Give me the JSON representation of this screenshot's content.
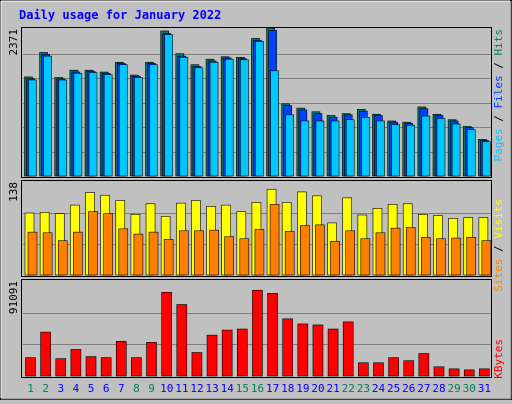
{
  "title": "Daily usage for January 2022",
  "colors": {
    "hits": "#00805c",
    "files": "#0040ff",
    "pages": "#00c8ff",
    "visits": "#ffff00",
    "sites": "#ff8000",
    "kbytes": "#ff0000",
    "weekend": "#00805c",
    "weekday": "#0000ff",
    "title": "#0000ff"
  },
  "chart_data": [
    {
      "type": "bar",
      "series": [
        {
          "name": "Hits",
          "values": [
            1620,
            2020,
            1610,
            1730,
            1730,
            1700,
            1860,
            1650,
            1860,
            2371,
            2000,
            1820,
            1910,
            1950,
            1940,
            2250,
            2420,
            1180,
            1110,
            1050,
            990,
            1020,
            1090,
            1010,
            900,
            880,
            1130,
            1010,
            920,
            810,
            600
          ]
        },
        {
          "name": "Files",
          "values": [
            1590,
            1990,
            1590,
            1700,
            1710,
            1680,
            1840,
            1630,
            1840,
            2330,
            1960,
            1790,
            1880,
            1930,
            1920,
            2220,
            2380,
            1150,
            1080,
            1020,
            960,
            1000,
            1060,
            990,
            880,
            860,
            1100,
            990,
            900,
            790,
            580
          ]
        },
        {
          "name": "Pages",
          "values": [
            1570,
            1960,
            1570,
            1680,
            1690,
            1660,
            1820,
            1610,
            1820,
            2310,
            1940,
            1770,
            1860,
            1910,
            1900,
            2200,
            1720,
            1000,
            900,
            900,
            900,
            920,
            960,
            900,
            840,
            830,
            980,
            940,
            850,
            760,
            560
          ]
        }
      ],
      "ylabel_max": "2371",
      "legend": [
        "Pages",
        "Files",
        "Hits"
      ]
    },
    {
      "type": "bar",
      "series": [
        {
          "name": "Visits",
          "values": [
            94,
            95,
            93,
            106,
            125,
            121,
            113,
            92,
            108,
            89,
            109,
            113,
            104,
            106,
            96,
            110,
            130,
            110,
            126,
            120,
            79,
            117,
            91,
            101,
            107,
            108,
            92,
            90,
            86,
            87,
            87
          ]
        },
        {
          "name": "Sites",
          "values": [
            65,
            64,
            52,
            65,
            96,
            93,
            70,
            62,
            65,
            54,
            67,
            67,
            68,
            58,
            55,
            69,
            107,
            66,
            75,
            76,
            51,
            67,
            55,
            64,
            71,
            72,
            57,
            55,
            56,
            57,
            52
          ]
        }
      ],
      "ylabel_max": "138",
      "legend": [
        "Sites",
        "Visits"
      ]
    },
    {
      "type": "bar",
      "series": [
        {
          "name": "KBytes",
          "values": [
            18000,
            43000,
            17000,
            26000,
            19000,
            18000,
            34000,
            18000,
            33000,
            82000,
            70000,
            23000,
            40000,
            45000,
            46000,
            84000,
            81000,
            56000,
            51000,
            50000,
            46000,
            53000,
            13000,
            13000,
            18000,
            15000,
            22000,
            9000,
            7000,
            6000,
            7000
          ]
        }
      ],
      "ylabel_max": "91091",
      "legend": [
        "KBytes"
      ]
    }
  ],
  "days": [
    {
      "label": "1",
      "weekend": true
    },
    {
      "label": "2",
      "weekend": true
    },
    {
      "label": "3",
      "weekend": false
    },
    {
      "label": "4",
      "weekend": false
    },
    {
      "label": "5",
      "weekend": false
    },
    {
      "label": "6",
      "weekend": false
    },
    {
      "label": "7",
      "weekend": false
    },
    {
      "label": "8",
      "weekend": true
    },
    {
      "label": "9",
      "weekend": true
    },
    {
      "label": "10",
      "weekend": false
    },
    {
      "label": "11",
      "weekend": false
    },
    {
      "label": "12",
      "weekend": false
    },
    {
      "label": "13",
      "weekend": false
    },
    {
      "label": "14",
      "weekend": false
    },
    {
      "label": "15",
      "weekend": true
    },
    {
      "label": "16",
      "weekend": true
    },
    {
      "label": "17",
      "weekend": false
    },
    {
      "label": "18",
      "weekend": false
    },
    {
      "label": "19",
      "weekend": false
    },
    {
      "label": "20",
      "weekend": false
    },
    {
      "label": "21",
      "weekend": false
    },
    {
      "label": "22",
      "weekend": true
    },
    {
      "label": "23",
      "weekend": true
    },
    {
      "label": "24",
      "weekend": false
    },
    {
      "label": "25",
      "weekend": false
    },
    {
      "label": "26",
      "weekend": false
    },
    {
      "label": "27",
      "weekend": false
    },
    {
      "label": "28",
      "weekend": false
    },
    {
      "label": "29",
      "weekend": true
    },
    {
      "label": "30",
      "weekend": true
    },
    {
      "label": "31",
      "weekend": false
    }
  ]
}
